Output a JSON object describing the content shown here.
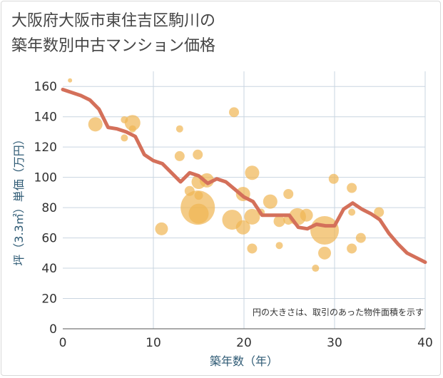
{
  "title_line1": "大阪府大阪市東住吉区駒川の",
  "title_line2": "築年数別中古マンション価格",
  "chart_data": {
    "type": "scatter",
    "title": "大阪府大阪市東住吉区駒川の築年数別中古マンション価格",
    "xlabel": "築年数（年）",
    "ylabel": "坪（3.3㎡）単価（万円）",
    "xlim": [
      0,
      40
    ],
    "ylim": [
      0,
      170
    ],
    "x_ticks": [
      0,
      10,
      20,
      30,
      40
    ],
    "y_ticks": [
      0,
      20,
      40,
      60,
      80,
      100,
      120,
      140,
      160
    ],
    "grid": true,
    "note": "円の大きさは、取引のあった物件面積を示す",
    "colors": {
      "bubble": "#f0b553",
      "trend": "#d4705a",
      "grid": "#c9d5e0"
    },
    "bubbles": [
      {
        "x": 0.8,
        "y": 164,
        "r": 3
      },
      {
        "x": 3.6,
        "y": 135,
        "r": 10
      },
      {
        "x": 6.8,
        "y": 138,
        "r": 5
      },
      {
        "x": 6.8,
        "y": 126,
        "r": 5
      },
      {
        "x": 7.7,
        "y": 136,
        "r": 11
      },
      {
        "x": 7.7,
        "y": 132,
        "r": 5
      },
      {
        "x": 10.9,
        "y": 66,
        "r": 9
      },
      {
        "x": 12.9,
        "y": 132,
        "r": 5
      },
      {
        "x": 12.9,
        "y": 114,
        "r": 7
      },
      {
        "x": 14,
        "y": 91,
        "r": 7
      },
      {
        "x": 14.9,
        "y": 115,
        "r": 7
      },
      {
        "x": 15,
        "y": 97,
        "r": 10
      },
      {
        "x": 15,
        "y": 88,
        "r": 6
      },
      {
        "x": 14.9,
        "y": 80,
        "r": 24
      },
      {
        "x": 15,
        "y": 76,
        "r": 14
      },
      {
        "x": 15.9,
        "y": 98,
        "r": 10
      },
      {
        "x": 18.7,
        "y": 72,
        "r": 14
      },
      {
        "x": 18.9,
        "y": 143,
        "r": 7
      },
      {
        "x": 19.9,
        "y": 89,
        "r": 10
      },
      {
        "x": 19.9,
        "y": 67,
        "r": 10
      },
      {
        "x": 20.9,
        "y": 103,
        "r": 10
      },
      {
        "x": 20.9,
        "y": 74,
        "r": 11
      },
      {
        "x": 20.9,
        "y": 53,
        "r": 7
      },
      {
        "x": 21.9,
        "y": 77,
        "r": 5
      },
      {
        "x": 22.9,
        "y": 84,
        "r": 10
      },
      {
        "x": 23.9,
        "y": 71,
        "r": 8
      },
      {
        "x": 23.9,
        "y": 55,
        "r": 5
      },
      {
        "x": 24.9,
        "y": 89,
        "r": 7
      },
      {
        "x": 24.9,
        "y": 72,
        "r": 7
      },
      {
        "x": 25.9,
        "y": 74,
        "r": 12
      },
      {
        "x": 26.9,
        "y": 75,
        "r": 9
      },
      {
        "x": 27.9,
        "y": 40,
        "r": 5
      },
      {
        "x": 28.9,
        "y": 65,
        "r": 20
      },
      {
        "x": 28.9,
        "y": 50,
        "r": 9
      },
      {
        "x": 29.9,
        "y": 99,
        "r": 7
      },
      {
        "x": 31.9,
        "y": 93,
        "r": 7
      },
      {
        "x": 31.9,
        "y": 77,
        "r": 5
      },
      {
        "x": 31.9,
        "y": 53,
        "r": 7
      },
      {
        "x": 32.9,
        "y": 60,
        "r": 7
      },
      {
        "x": 34.9,
        "y": 77,
        "r": 7
      }
    ],
    "trend": {
      "x": [
        0,
        1,
        2,
        3,
        4,
        5,
        6,
        7,
        8,
        9,
        10,
        11,
        12,
        13,
        14,
        15,
        16,
        17,
        18,
        19,
        20,
        21,
        22,
        23,
        24,
        25,
        26,
        27,
        28,
        29,
        30,
        31,
        32,
        33,
        34,
        35,
        36,
        37,
        38,
        39,
        40
      ],
      "y": [
        158,
        156,
        154,
        151,
        145,
        133,
        132,
        130,
        127,
        115,
        111,
        109,
        103,
        97,
        103,
        101,
        96,
        99,
        97,
        92,
        87,
        84,
        75,
        75,
        75,
        75,
        67,
        66,
        69,
        68,
        68,
        79,
        83,
        79,
        76,
        72,
        63,
        56,
        50,
        47,
        44
      ]
    }
  }
}
